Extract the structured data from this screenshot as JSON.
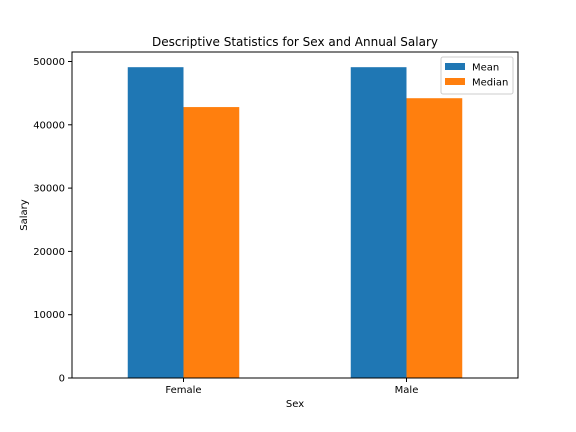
{
  "chart_data": {
    "type": "bar",
    "title": "Descriptive Statistics for Sex and Annual Salary",
    "xlabel": "Sex",
    "ylabel": "Salary",
    "categories": [
      "Female",
      "Male"
    ],
    "series": [
      {
        "name": "Mean",
        "values": [
          49100,
          49100
        ],
        "color": "#1f77b4"
      },
      {
        "name": "Median",
        "values": [
          42800,
          44200
        ],
        "color": "#ff7f0e"
      }
    ],
    "ylim": [
      0,
      51500
    ],
    "yticks": [
      0,
      10000,
      20000,
      30000,
      40000,
      50000
    ],
    "legend": "top-right",
    "grid": false
  }
}
